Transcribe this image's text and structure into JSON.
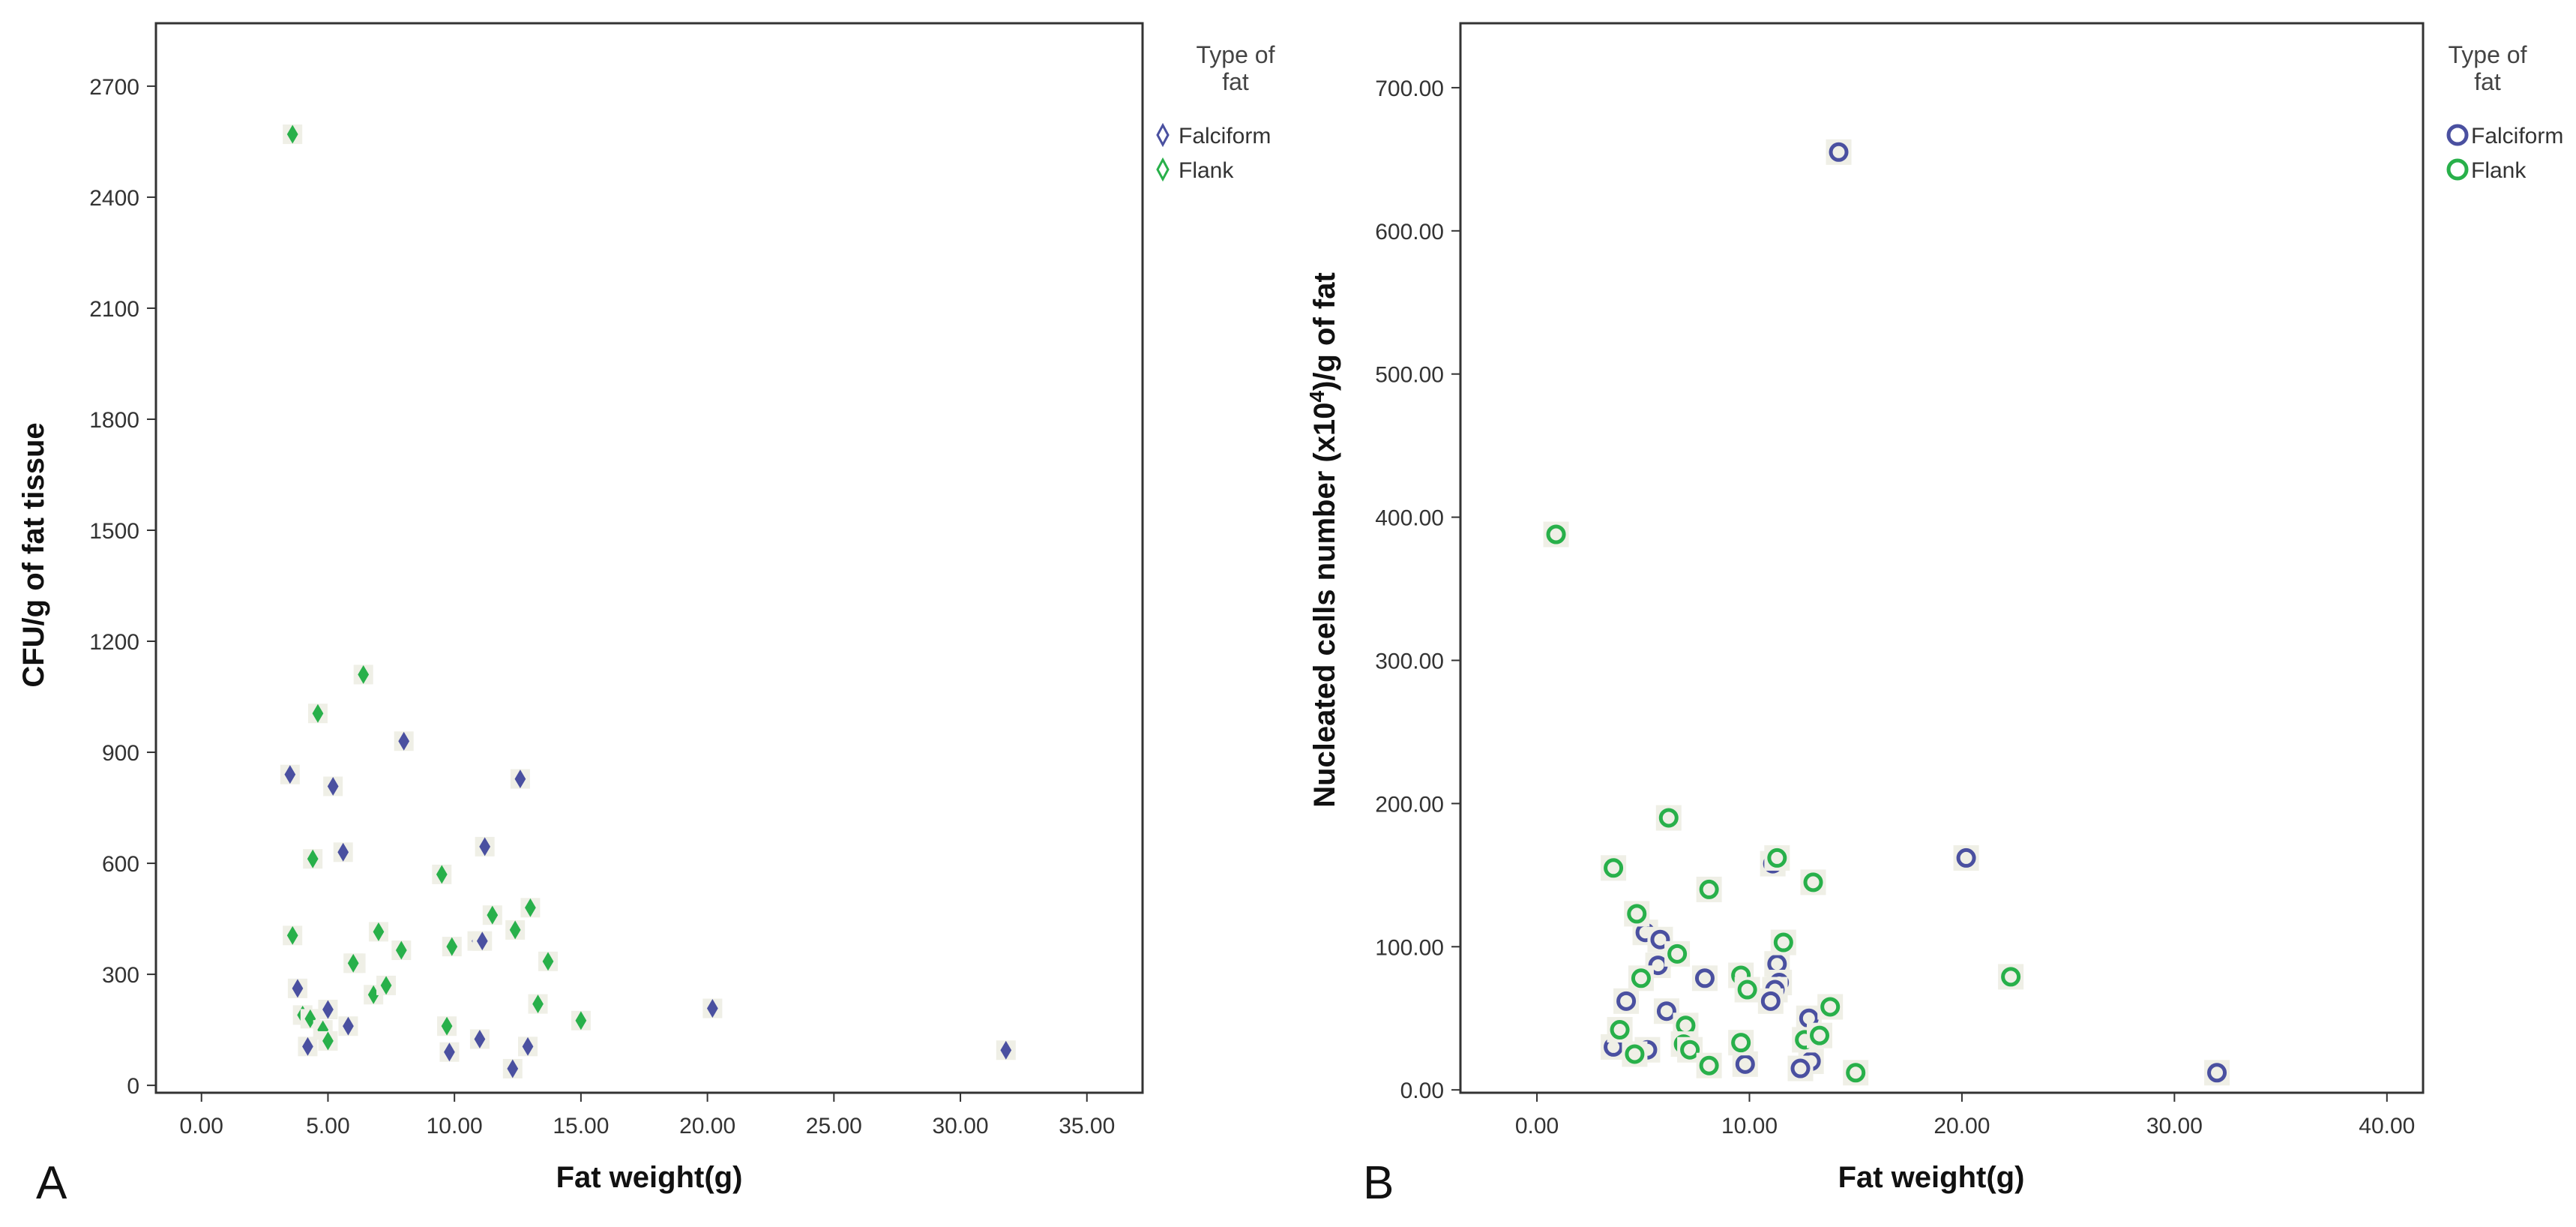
{
  "figure": {
    "colors": {
      "Falciform": "#4a50a0",
      "Flank": "#28b04a",
      "frame": "#333333",
      "halo": "#efefe6"
    }
  },
  "chart_data": [
    {
      "type": "scatter",
      "panel_label": "A",
      "xlabel": "Fat weight(g)",
      "ylabel": "CFU/g of fat tissue",
      "xlim": [
        -1.8,
        37.2
      ],
      "ylim": [
        -20,
        2870
      ],
      "xticks": [
        0,
        5,
        10,
        15,
        20,
        25,
        30,
        35
      ],
      "xtick_labels": [
        "0.00",
        "5.00",
        "10.00",
        "15.00",
        "20.00",
        "25.00",
        "30.00",
        "35.00"
      ],
      "yticks": [
        0,
        300,
        600,
        900,
        1200,
        1500,
        1800,
        2100,
        2400,
        2700
      ],
      "ytick_labels": [
        "0",
        "300",
        "600",
        "900",
        "1200",
        "1500",
        "1800",
        "2100",
        "2400",
        "2700"
      ],
      "legend_title": [
        "Type of",
        "fat"
      ],
      "legend": [
        "Falciform",
        "Flank"
      ],
      "legend_position": "right outside",
      "marker": "diamond",
      "series": [
        {
          "name": "Falciform",
          "color": "#4a50a0",
          "points": [
            [
              3.5,
              840
            ],
            [
              3.8,
              262
            ],
            [
              4.2,
              105
            ],
            [
              5.0,
              205
            ],
            [
              5.2,
              808
            ],
            [
              5.6,
              630
            ],
            [
              5.8,
              160
            ],
            [
              6.1,
              330
            ],
            [
              8.0,
              930
            ],
            [
              9.8,
              90
            ],
            [
              10.9,
              390
            ],
            [
              11.1,
              390
            ],
            [
              11.2,
              645
            ],
            [
              11.0,
              125
            ],
            [
              12.3,
              45
            ],
            [
              12.6,
              828
            ],
            [
              12.9,
              105
            ],
            [
              20.2,
              208
            ],
            [
              31.8,
              95
            ]
          ]
        },
        {
          "name": "Flank",
          "color": "#28b04a",
          "points": [
            [
              3.6,
              2570
            ],
            [
              3.6,
              405
            ],
            [
              4.0,
              190
            ],
            [
              4.3,
              180
            ],
            [
              4.4,
              612
            ],
            [
              4.6,
              1005
            ],
            [
              4.8,
              150
            ],
            [
              5.0,
              120
            ],
            [
              6.0,
              330
            ],
            [
              6.4,
              1110
            ],
            [
              6.8,
              245
            ],
            [
              7.0,
              415
            ],
            [
              7.3,
              270
            ],
            [
              7.9,
              365
            ],
            [
              9.5,
              570
            ],
            [
              9.7,
              160
            ],
            [
              9.9,
              375
            ],
            [
              11.5,
              460
            ],
            [
              12.4,
              420
            ],
            [
              13.0,
              480
            ],
            [
              13.3,
              220
            ],
            [
              13.7,
              335
            ],
            [
              15.0,
              175
            ]
          ]
        }
      ]
    },
    {
      "type": "scatter",
      "panel_label": "B",
      "xlabel": "Fat weight(g)",
      "ylabel_prefix": "Nucleated cells number (x10",
      "ylabel_sup": "4",
      "ylabel_suffix": ")/g of fat",
      "xlim": [
        -3.6,
        41.7
      ],
      "ylim": [
        -2,
        745
      ],
      "xticks": [
        0,
        10,
        20,
        30,
        40
      ],
      "xtick_labels": [
        "0.00",
        "10.00",
        "20.00",
        "30.00",
        "40.00"
      ],
      "yticks": [
        0,
        100,
        200,
        300,
        400,
        500,
        600,
        700
      ],
      "ytick_labels": [
        "0.00",
        "100.00",
        "200.00",
        "300.00",
        "400.00",
        "500.00",
        "600.00",
        "700.00"
      ],
      "legend_title": [
        "Type of",
        "fat"
      ],
      "legend": [
        "Falciform",
        "Flank"
      ],
      "legend_position": "right outside",
      "marker": "circle",
      "series": [
        {
          "name": "Falciform",
          "color": "#4a50a0",
          "points": [
            [
              14.2,
              655
            ],
            [
              20.2,
              162
            ],
            [
              11.1,
              158
            ],
            [
              5.1,
              110
            ],
            [
              5.8,
              105
            ],
            [
              5.7,
              87
            ],
            [
              6.1,
              55
            ],
            [
              4.2,
              62
            ],
            [
              3.6,
              30
            ],
            [
              5.2,
              28
            ],
            [
              7.9,
              78
            ],
            [
              9.8,
              18
            ],
            [
              11.3,
              88
            ],
            [
              11.4,
              75
            ],
            [
              11.2,
              70
            ],
            [
              11.0,
              62
            ],
            [
              12.8,
              50
            ],
            [
              12.9,
              20
            ],
            [
              12.4,
              15
            ],
            [
              32.0,
              12
            ]
          ]
        },
        {
          "name": "Flank",
          "color": "#28b04a",
          "points": [
            [
              0.9,
              388
            ],
            [
              6.2,
              190
            ],
            [
              3.6,
              155
            ],
            [
              11.3,
              162
            ],
            [
              13.0,
              145
            ],
            [
              8.1,
              140
            ],
            [
              4.7,
              123
            ],
            [
              11.6,
              103
            ],
            [
              6.6,
              95
            ],
            [
              4.9,
              78
            ],
            [
              9.6,
              80
            ],
            [
              9.9,
              70
            ],
            [
              7.0,
              45
            ],
            [
              3.9,
              42
            ],
            [
              4.6,
              25
            ],
            [
              6.9,
              32
            ],
            [
              7.2,
              28
            ],
            [
              8.1,
              17
            ],
            [
              9.6,
              33
            ],
            [
              12.6,
              35
            ],
            [
              13.3,
              38
            ],
            [
              13.8,
              58
            ],
            [
              15.0,
              12
            ],
            [
              22.3,
              79
            ]
          ]
        }
      ]
    }
  ]
}
